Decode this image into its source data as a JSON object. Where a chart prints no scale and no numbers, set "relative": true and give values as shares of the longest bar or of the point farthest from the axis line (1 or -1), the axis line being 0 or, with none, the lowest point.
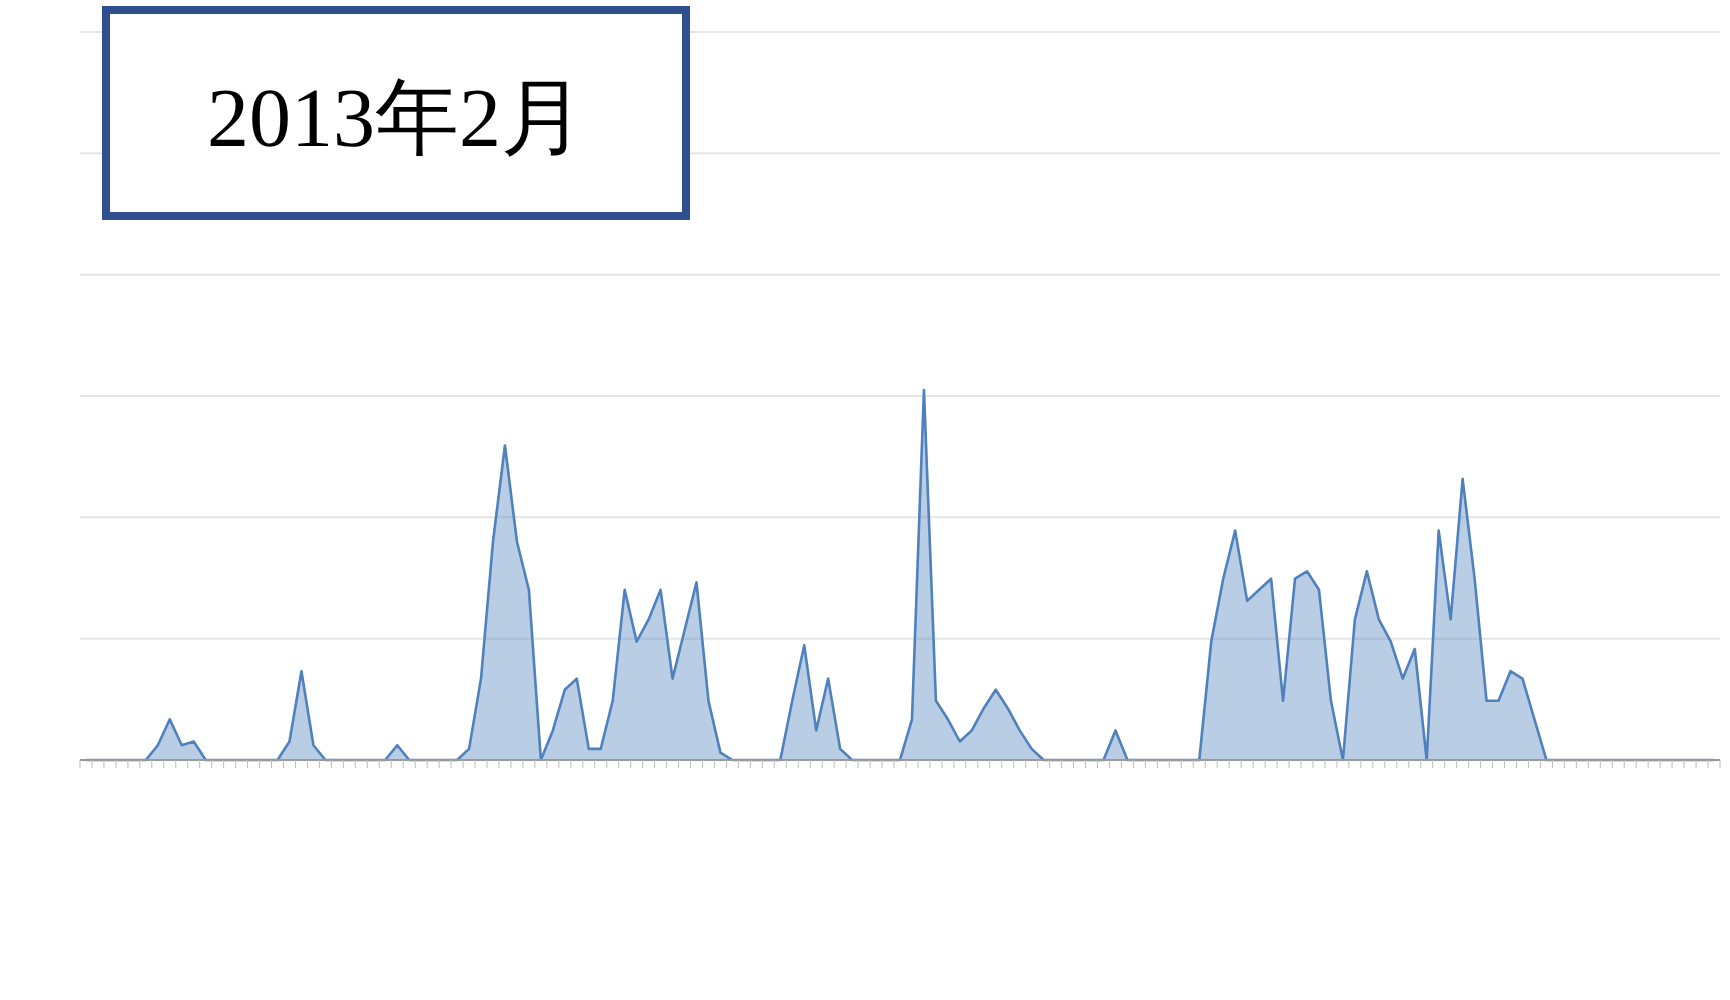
{
  "chart_data": {
    "type": "area",
    "title": "2013年2月",
    "relative": true,
    "grid": "y",
    "categories": [
      null,
      null,
      null,
      null,
      null,
      null,
      null,
      null,
      null,
      null,
      null,
      null,
      null,
      null,
      null,
      null,
      null,
      null,
      null,
      null,
      null,
      null,
      null,
      null,
      null,
      null,
      null,
      null,
      null,
      null,
      null,
      null,
      null,
      null,
      null,
      null,
      null,
      null,
      null,
      null,
      null,
      null,
      null,
      null,
      null,
      null,
      null,
      null,
      null,
      null,
      null,
      null,
      null,
      null,
      null,
      null,
      null,
      null,
      null,
      null,
      null,
      null,
      null,
      null,
      null,
      null,
      null,
      null,
      null,
      null,
      null,
      null,
      null,
      null,
      null,
      null,
      null,
      null,
      null,
      null,
      null,
      null,
      null,
      null,
      null,
      null,
      null,
      null,
      null,
      null,
      null,
      null,
      null,
      null,
      null,
      null,
      null,
      null,
      null,
      null,
      null,
      null,
      null,
      null,
      null,
      null,
      null,
      null,
      null,
      null,
      null,
      null,
      null,
      null,
      null,
      null,
      null,
      null,
      null,
      null,
      null,
      null,
      null,
      null,
      null,
      null,
      null,
      null,
      null,
      null,
      null,
      null,
      null,
      null,
      null,
      null,
      null
    ],
    "series": [
      {
        "color": "#4f81bd",
        "values": [
          0,
          0,
          0,
          0,
          0,
          0,
          0.04,
          0.11,
          0.04,
          0.05,
          0,
          0,
          0,
          0,
          0,
          0,
          0,
          0.05,
          0.24,
          0.04,
          0,
          0,
          0,
          0,
          0,
          0,
          0.04,
          0,
          0,
          0,
          0,
          0,
          0.03,
          0.22,
          0.59,
          0.85,
          0.59,
          0.46,
          0,
          0.08,
          0.19,
          0.22,
          0.03,
          0.03,
          0.16,
          0.46,
          0.32,
          0.38,
          0.46,
          0.22,
          0.35,
          0.48,
          0.16,
          0.02,
          0,
          0,
          0,
          0,
          0,
          0.16,
          0.31,
          0.08,
          0.22,
          0.03,
          0,
          0,
          0,
          0,
          0,
          0.11,
          1,
          0.16,
          0.11,
          0.05,
          0.08,
          0.14,
          0.19,
          0.14,
          0.08,
          0.03,
          0,
          0,
          0,
          0,
          0,
          0,
          0.08,
          0,
          0,
          0,
          0,
          0,
          0,
          0,
          0.32,
          0.49,
          0.62,
          0.43,
          0.46,
          0.49,
          0.16,
          0.49,
          0.51,
          0.46,
          0.16,
          0,
          0.38,
          0.51,
          0.38,
          0.32,
          0.22,
          0.3,
          0,
          0.62,
          0.38,
          0.76,
          0.49,
          0.16,
          0.16,
          0.24,
          0.22,
          0.11,
          0,
          0,
          0,
          0,
          0,
          0,
          0,
          0,
          0,
          0,
          0,
          0,
          0,
          0,
          0
        ]
      }
    ]
  }
}
